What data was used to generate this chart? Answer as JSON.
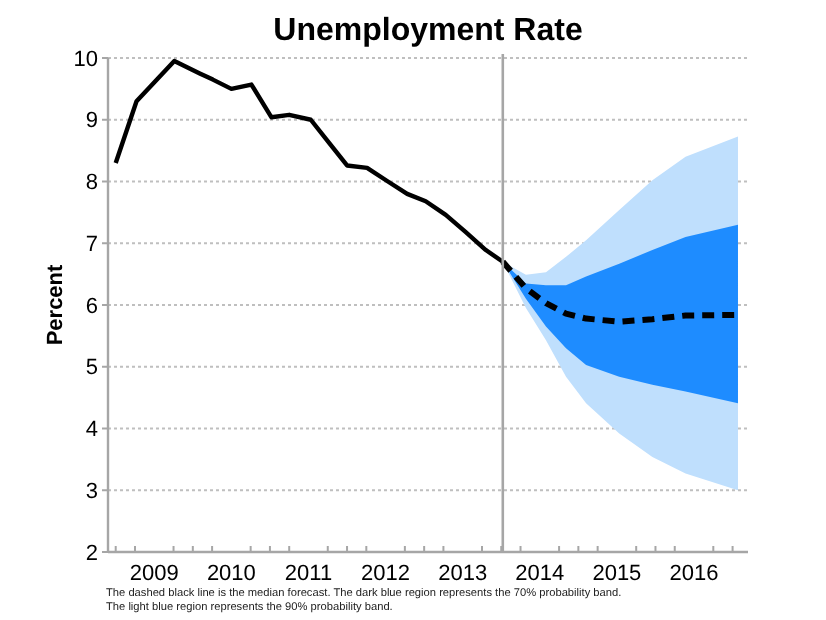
{
  "chart_data": {
    "type": "line",
    "title": "Unemployment Rate",
    "ylabel": "Percent",
    "xlim": [
      2008.9,
      2017.2
    ],
    "ylim": [
      2,
      10
    ],
    "yticks": [
      2,
      3,
      4,
      5,
      6,
      7,
      8,
      9,
      10
    ],
    "xticks": [
      {
        "value": 2009.0,
        "label": null
      },
      {
        "value": 2009.25,
        "label": null
      },
      {
        "value": 2009.5,
        "label": "2009"
      },
      {
        "value": 2009.75,
        "label": null
      },
      {
        "value": 2010.0,
        "label": null
      },
      {
        "value": 2010.25,
        "label": null
      },
      {
        "value": 2010.5,
        "label": "2010"
      },
      {
        "value": 2010.75,
        "label": null
      },
      {
        "value": 2011.0,
        "label": null
      },
      {
        "value": 2011.25,
        "label": null
      },
      {
        "value": 2011.5,
        "label": "2011"
      },
      {
        "value": 2011.75,
        "label": null
      },
      {
        "value": 2012.0,
        "label": null
      },
      {
        "value": 2012.25,
        "label": null
      },
      {
        "value": 2012.5,
        "label": "2012"
      },
      {
        "value": 2012.75,
        "label": null
      },
      {
        "value": 2013.0,
        "label": null
      },
      {
        "value": 2013.25,
        "label": null
      },
      {
        "value": 2013.5,
        "label": "2013"
      },
      {
        "value": 2013.75,
        "label": null
      },
      {
        "value": 2014.0,
        "label": null
      },
      {
        "value": 2014.25,
        "label": null
      },
      {
        "value": 2014.5,
        "label": "2014"
      },
      {
        "value": 2014.75,
        "label": null
      },
      {
        "value": 2015.0,
        "label": null
      },
      {
        "value": 2015.25,
        "label": null
      },
      {
        "value": 2015.5,
        "label": "2015"
      },
      {
        "value": 2015.75,
        "label": null
      },
      {
        "value": 2016.0,
        "label": null
      },
      {
        "value": 2016.25,
        "label": null
      },
      {
        "value": 2016.5,
        "label": "2016"
      },
      {
        "value": 2016.75,
        "label": null
      },
      {
        "value": 2017.0,
        "label": null
      }
    ],
    "grid": "y",
    "series": [
      {
        "type": "area",
        "color": "#bfdffd",
        "x": [
          2014.02,
          2014.32,
          2014.58,
          2014.84,
          2015.1,
          2015.53,
          2015.96,
          2016.39,
          2017.07
        ],
        "values": [
          null,
          null,
          null,
          null,
          null,
          null,
          null,
          null,
          null
        ],
        "lower": [
          6.7,
          5.95,
          5.43,
          4.84,
          4.41,
          3.92,
          3.54,
          3.27,
          3.0
        ],
        "upper": [
          6.7,
          6.49,
          6.53,
          6.78,
          7.05,
          7.54,
          8.02,
          8.4,
          8.73
        ]
      },
      {
        "type": "area",
        "color": "#1e8cff",
        "x": [
          2014.02,
          2014.32,
          2014.58,
          2014.84,
          2015.1,
          2015.53,
          2015.96,
          2016.39,
          2017.07
        ],
        "values": [
          null,
          null,
          null,
          null,
          null,
          null,
          null,
          null,
          null
        ],
        "lower": [
          6.7,
          6.1,
          5.65,
          5.3,
          5.03,
          4.84,
          4.71,
          4.6,
          4.41
        ],
        "upper": [
          6.7,
          6.35,
          6.32,
          6.32,
          6.46,
          6.67,
          6.89,
          7.1,
          7.3
        ]
      },
      {
        "color": "#000000",
        "line_style": "solid",
        "x": [
          2009.0,
          2009.27,
          2009.76,
          2010.09,
          2010.26,
          2010.5,
          2010.76,
          2011.02,
          2011.25,
          2011.53,
          2011.77,
          2012.0,
          2012.26,
          2012.53,
          2012.78,
          2013.02,
          2013.28,
          2013.54,
          2013.8,
          2014.02
        ],
        "values": [
          8.3,
          9.3,
          9.95,
          9.75,
          9.65,
          9.5,
          9.57,
          9.04,
          9.08,
          9.0,
          8.62,
          8.26,
          8.22,
          8.0,
          7.8,
          7.68,
          7.46,
          7.18,
          6.89,
          6.7
        ]
      },
      {
        "color": "#000000",
        "line_style": "dashed",
        "x": [
          2014.02,
          2014.32,
          2014.58,
          2014.84,
          2015.1,
          2015.53,
          2015.96,
          2016.39,
          2017.07
        ],
        "values": [
          6.7,
          6.27,
          6.03,
          5.86,
          5.78,
          5.73,
          5.77,
          5.83,
          5.84
        ]
      }
    ],
    "ref_lines": [
      {
        "axis": "x",
        "value": 2014.02,
        "color": "#a6a6a6",
        "line_style": "solid"
      }
    ],
    "annotations": [
      "The dashed black line is the median forecast. The dark blue region represents the 70% probability band.",
      "The light blue region represents the 90% probability band."
    ]
  }
}
